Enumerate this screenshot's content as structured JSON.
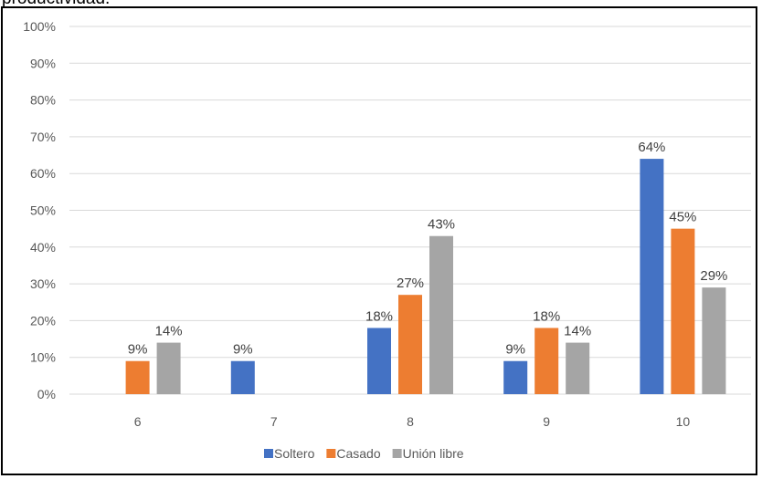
{
  "heading_fragment": "productividad.",
  "chart_data": {
    "type": "bar",
    "categories": [
      "6",
      "7",
      "8",
      "9",
      "10"
    ],
    "series": [
      {
        "name": "Soltero",
        "color": "#4472C4",
        "values": [
          null,
          9,
          18,
          9,
          64
        ]
      },
      {
        "name": "Casado",
        "color": "#ED7D31",
        "values": [
          9,
          null,
          27,
          18,
          45
        ]
      },
      {
        "name": "Unión libre",
        "color": "#A5A5A5",
        "values": [
          14,
          null,
          43,
          14,
          29
        ]
      }
    ],
    "ylim": [
      0,
      100
    ],
    "yticks": [
      0,
      10,
      20,
      30,
      40,
      50,
      60,
      70,
      80,
      90,
      100
    ],
    "ytick_labels": [
      "0%",
      "10%",
      "20%",
      "30%",
      "40%",
      "50%",
      "60%",
      "70%",
      "80%",
      "90%",
      "100%"
    ],
    "data_labels": [
      [
        null,
        "9%",
        "18%",
        "9%",
        "64%"
      ],
      [
        "9%",
        null,
        "27%",
        "18%",
        "45%"
      ],
      [
        "14%",
        null,
        "43%",
        "14%",
        "29%"
      ]
    ],
    "grid": true,
    "legend": "bottom-center"
  }
}
